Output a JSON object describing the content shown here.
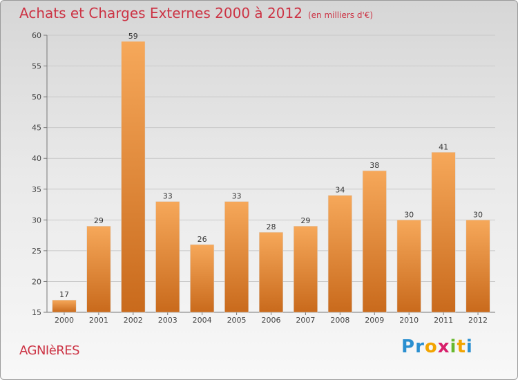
{
  "header": {
    "title": "Achats et Charges Externes 2000 à 2012",
    "unit": "(en milliers d'€)"
  },
  "footer": {
    "commune": "AGNIèRES",
    "brand_letters": [
      {
        "ch": "P",
        "color": "#2a8fd0"
      },
      {
        "ch": "r",
        "color": "#2a8fd0"
      },
      {
        "ch": "o",
        "color": "#f2a400"
      },
      {
        "ch": "x",
        "color": "#d81f6b"
      },
      {
        "ch": "i",
        "color": "#68b82e"
      },
      {
        "ch": "t",
        "color": "#f2a400"
      },
      {
        "ch": "i",
        "color": "#2a8fd0"
      }
    ]
  },
  "chart_data": {
    "type": "bar",
    "title": "Achats et Charges Externes 2000 à 2012",
    "categories": [
      "2000",
      "2001",
      "2002",
      "2003",
      "2004",
      "2005",
      "2006",
      "2007",
      "2008",
      "2009",
      "2010",
      "2011",
      "2012"
    ],
    "values": [
      17,
      29,
      59,
      33,
      26,
      33,
      28,
      29,
      34,
      38,
      30,
      41,
      30
    ],
    "ylim": [
      15,
      60
    ],
    "yticks": [
      15,
      20,
      25,
      30,
      35,
      40,
      45,
      50,
      55,
      60
    ],
    "grid": true,
    "bar_color": "#e8893a",
    "label_color": "#333333"
  }
}
